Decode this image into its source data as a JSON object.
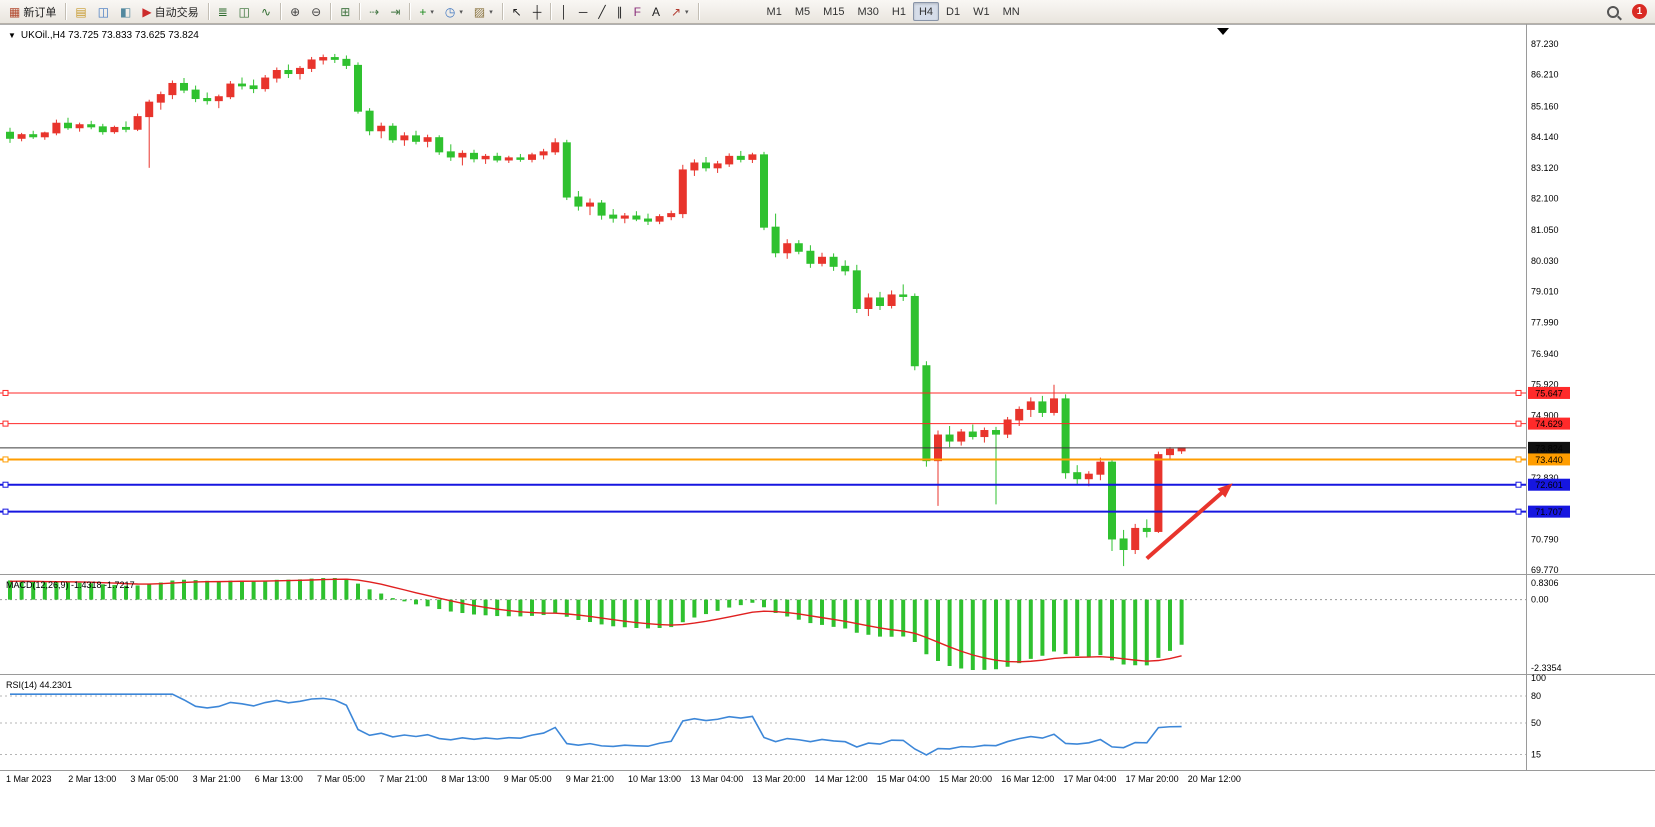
{
  "toolbar": {
    "notification_count": "1",
    "active_timeframe": "H4",
    "groups": [
      [
        {
          "name": "new-order-button",
          "glyph": "▦",
          "glyph_color": "#b24a2f",
          "label": "新订单"
        }
      ],
      [
        {
          "name": "market-watch-button",
          "glyph": "▤",
          "glyph_color": "#c79a2e"
        },
        {
          "name": "navigator-button",
          "glyph": "◫",
          "glyph_color": "#3f76c0"
        },
        {
          "name": "terminal-button",
          "glyph": "◧",
          "glyph_color": "#52889e"
        },
        {
          "name": "autotrading-button",
          "glyph": "▶",
          "glyph_color": "#cc2b2b",
          "label": "自动交易"
        }
      ],
      [
        {
          "name": "bar-chart-button",
          "glyph": "≣",
          "glyph_color": "#2e6b2e"
        },
        {
          "name": "candlestick-chart-button",
          "glyph": "◫",
          "glyph_color": "#2e6b2e"
        },
        {
          "name": "line-chart-button",
          "glyph": "∿",
          "glyph_color": "#2e6b2e"
        }
      ],
      [
        {
          "name": "zoom-in-button",
          "glyph": "⊕",
          "glyph_color": "#444444"
        },
        {
          "name": "zoom-out-button",
          "glyph": "⊖",
          "glyph_color": "#444444"
        }
      ],
      [
        {
          "name": "tile-windows-button",
          "glyph": "⊞",
          "glyph_color": "#447744"
        }
      ],
      [
        {
          "name": "auto-scroll-button",
          "glyph": "⇢",
          "glyph_color": "#447744"
        },
        {
          "name": "chart-shift-button",
          "glyph": "⇥",
          "glyph_color": "#447744"
        }
      ],
      [
        {
          "name": "indicators-button",
          "glyph": "+",
          "glyph_color": "#1d8a1d",
          "caret": true
        },
        {
          "name": "periods-button",
          "glyph": "◷",
          "glyph_color": "#3f76c0",
          "caret": true
        },
        {
          "name": "templates-button",
          "glyph": "▨",
          "glyph_color": "#8a7440",
          "caret": true
        }
      ],
      [
        {
          "name": "cursor-button",
          "glyph": "↖",
          "glyph_color": "#222222"
        },
        {
          "name": "crosshair-button",
          "glyph": "┼",
          "glyph_color": "#222222"
        }
      ],
      [
        {
          "name": "vertical-line-button",
          "glyph": "│",
          "glyph_color": "#222222"
        },
        {
          "name": "horizontal-line-button",
          "glyph": "─",
          "glyph_color": "#222222"
        },
        {
          "name": "trendline-button",
          "glyph": "╱",
          "glyph_color": "#222222"
        },
        {
          "name": "channel-button",
          "glyph": "∥",
          "glyph_color": "#222222"
        },
        {
          "name": "fibonacci-button",
          "glyph": "F",
          "glyph_color": "#8a2f7a"
        },
        {
          "name": "text-button",
          "glyph": "A",
          "glyph_color": "#222222"
        },
        {
          "name": "arrows-button",
          "glyph": "↗",
          "glyph_color": "#b23a2f",
          "caret": true
        }
      ],
      [
        {
          "name": "timeframe-m1-button",
          "label": "M1",
          "cls": "tf"
        },
        {
          "name": "timeframe-m5-button",
          "label": "M5",
          "cls": "tf"
        },
        {
          "name": "timeframe-m15-button",
          "label": "M15",
          "cls": "tf"
        },
        {
          "name": "timeframe-m30-button",
          "label": "M30",
          "cls": "tf"
        },
        {
          "name": "timeframe-h1-button",
          "label": "H1",
          "cls": "tf"
        },
        {
          "name": "timeframe-h4-button",
          "label": "H4",
          "cls": "tf",
          "active": true
        },
        {
          "name": "timeframe-d1-button",
          "label": "D1",
          "cls": "tf"
        },
        {
          "name": "timeframe-w1-button",
          "label": "W1",
          "cls": "tf"
        },
        {
          "name": "timeframe-mn-button",
          "label": "MN",
          "cls": "tf"
        }
      ]
    ]
  },
  "chart": {
    "symbol": "UKOil",
    "period": "H4",
    "symbol_line": "UKOil.,H4  73.725 73.833 73.625 73.824",
    "ohlc_display": {
      "open": "73.725",
      "high": "73.833",
      "low": "73.625",
      "close": "73.824"
    }
  },
  "indicators": {
    "macd_label": "MACD(12,26,9) -1.4318 -1.7217",
    "rsi_label": "RSI(14) 44.2301"
  },
  "chart_data": {
    "type": "candlestick",
    "symbol": "UKOil",
    "timeframe": "H4",
    "colors": {
      "bull": "#e8342c",
      "bear": "#2fc12f",
      "macd_hist": "#2fc12f",
      "macd_signal": "#e02020",
      "rsi_line": "#3d87d8"
    },
    "price_range": {
      "min": 69.77,
      "max": 87.23
    },
    "price_ticks": [
      [
        "87.230",
        87.23
      ],
      [
        "86.210",
        86.21
      ],
      [
        "85.160",
        85.16
      ],
      [
        "84.140",
        84.14
      ],
      [
        "83.120",
        83.12
      ],
      [
        "82.100",
        82.1
      ],
      [
        "81.050",
        81.05
      ],
      [
        "80.030",
        80.03
      ],
      [
        "79.010",
        79.01
      ],
      [
        "77.990",
        77.99
      ],
      [
        "76.940",
        76.94
      ],
      [
        "75.920",
        75.92
      ],
      [
        "74.900",
        74.9
      ],
      [
        "72.830",
        72.83
      ],
      [
        "70.790",
        70.79
      ],
      [
        "69.770",
        69.77
      ]
    ],
    "hlines": [
      {
        "name": "resistance-line-1",
        "price": 75.647,
        "label": "75.647",
        "color": "#ff2a2a",
        "width": 1,
        "tag_bg": "#ff2a2a",
        "tag_fg": "#ffffff",
        "anchors": true
      },
      {
        "name": "resistance-line-2",
        "price": 74.629,
        "label": "74.629",
        "color": "#ff2a2a",
        "width": 1,
        "tag_bg": "#ff2a2a",
        "tag_fg": "#ffffff",
        "anchors": true
      },
      {
        "name": "current-price-line",
        "price": 73.824,
        "label": "73.824",
        "color": "#3c3c3c",
        "width": 1,
        "tag_bg": "#101010",
        "tag_fg": "#ffffff",
        "anchors": false
      },
      {
        "name": "support-line-orange",
        "price": 73.44,
        "label": "73.440",
        "color": "#ff9d00",
        "width": 2,
        "tag_bg": "#ff9d00",
        "tag_fg": "#000000",
        "anchors": true
      },
      {
        "name": "support-line-blue-1",
        "price": 72.601,
        "label": "72.601",
        "color": "#1616e0",
        "width": 2,
        "tag_bg": "#1616e0",
        "tag_fg": "#ffffff",
        "anchors": true
      },
      {
        "name": "support-line-blue-2",
        "price": 71.707,
        "label": "71.707",
        "color": "#1616e0",
        "width": 2,
        "tag_bg": "#1616e0",
        "tag_fg": "#ffffff",
        "anchors": true
      }
    ],
    "arrow": {
      "x1_index": 98.0,
      "y1_price": 70.15,
      "x2_index": 105.4,
      "y2_price": 72.65,
      "color": "#e8342c"
    },
    "time_labels": [
      "1 Mar 2023",
      "2 Mar 13:00",
      "3 Mar 05:00",
      "3 Mar 21:00",
      "6 Mar 13:00",
      "7 Mar 05:00",
      "7 Mar 21:00",
      "8 Mar 13:00",
      "9 Mar 05:00",
      "9 Mar 21:00",
      "10 Mar 13:00",
      "13 Mar 04:00",
      "13 Mar 20:00",
      "14 Mar 12:00",
      "15 Mar 04:00",
      "15 Mar 20:00",
      "16 Mar 12:00",
      "17 Mar 04:00",
      "17 Mar 20:00",
      "20 Mar 12:00"
    ],
    "macd": {
      "params": "12,26,9",
      "main_value": -1.4318,
      "signal_value": -1.7217,
      "axis_labels": [
        "0.8306",
        "0.00",
        "-2.3354"
      ]
    },
    "rsi": {
      "params": "14",
      "value": 44.2301,
      "levels": [
        80,
        50,
        15
      ],
      "axis_labels": [
        [
          "100",
          100
        ],
        [
          "80",
          80
        ],
        [
          "50",
          50
        ],
        [
          "15",
          15
        ]
      ]
    },
    "ohlc": [
      [
        84.3,
        84.45,
        83.95,
        84.1
      ],
      [
        84.1,
        84.28,
        84.0,
        84.22
      ],
      [
        84.22,
        84.35,
        84.08,
        84.15
      ],
      [
        84.15,
        84.32,
        84.05,
        84.28
      ],
      [
        84.28,
        84.72,
        84.2,
        84.6
      ],
      [
        84.6,
        84.78,
        84.38,
        84.45
      ],
      [
        84.45,
        84.62,
        84.32,
        84.55
      ],
      [
        84.55,
        84.68,
        84.4,
        84.48
      ],
      [
        84.48,
        84.58,
        84.22,
        84.32
      ],
      [
        84.32,
        84.52,
        84.25,
        84.46
      ],
      [
        84.46,
        84.66,
        84.3,
        84.4
      ],
      [
        84.4,
        84.92,
        84.34,
        84.82
      ],
      [
        84.82,
        85.38,
        83.12,
        85.3
      ],
      [
        85.3,
        85.65,
        85.05,
        85.55
      ],
      [
        85.55,
        86.02,
        85.4,
        85.92
      ],
      [
        85.92,
        86.1,
        85.6,
        85.7
      ],
      [
        85.7,
        85.85,
        85.3,
        85.42
      ],
      [
        85.42,
        85.62,
        85.22,
        85.35
      ],
      [
        85.35,
        85.55,
        85.1,
        85.48
      ],
      [
        85.48,
        86.0,
        85.4,
        85.9
      ],
      [
        85.9,
        86.12,
        85.72,
        85.84
      ],
      [
        85.84,
        86.05,
        85.6,
        85.75
      ],
      [
        85.75,
        86.2,
        85.65,
        86.1
      ],
      [
        86.1,
        86.45,
        85.95,
        86.35
      ],
      [
        86.35,
        86.55,
        86.1,
        86.25
      ],
      [
        86.25,
        86.5,
        86.05,
        86.42
      ],
      [
        86.42,
        86.8,
        86.3,
        86.7
      ],
      [
        86.7,
        86.88,
        86.55,
        86.78
      ],
      [
        86.78,
        86.9,
        86.6,
        86.72
      ],
      [
        86.72,
        86.85,
        86.4,
        86.52
      ],
      [
        86.52,
        86.62,
        84.92,
        85.0
      ],
      [
        85.0,
        85.1,
        84.2,
        84.35
      ],
      [
        84.35,
        84.62,
        84.1,
        84.5
      ],
      [
        84.5,
        84.6,
        83.95,
        84.05
      ],
      [
        84.05,
        84.3,
        83.85,
        84.18
      ],
      [
        84.18,
        84.35,
        83.9,
        84.0
      ],
      [
        84.0,
        84.22,
        83.8,
        84.12
      ],
      [
        84.12,
        84.2,
        83.55,
        83.65
      ],
      [
        83.65,
        83.9,
        83.35,
        83.48
      ],
      [
        83.48,
        83.7,
        83.2,
        83.6
      ],
      [
        83.6,
        83.72,
        83.3,
        83.42
      ],
      [
        83.42,
        83.58,
        83.25,
        83.5
      ],
      [
        83.5,
        83.62,
        83.3,
        83.38
      ],
      [
        83.38,
        83.52,
        83.28,
        83.45
      ],
      [
        83.45,
        83.58,
        83.32,
        83.4
      ],
      [
        83.4,
        83.62,
        83.3,
        83.55
      ],
      [
        83.55,
        83.75,
        83.4,
        83.65
      ],
      [
        83.65,
        84.1,
        83.55,
        83.95
      ],
      [
        83.95,
        84.05,
        82.05,
        82.15
      ],
      [
        82.15,
        82.35,
        81.7,
        81.85
      ],
      [
        81.85,
        82.1,
        81.55,
        81.95
      ],
      [
        81.95,
        82.05,
        81.4,
        81.55
      ],
      [
        81.55,
        81.75,
        81.3,
        81.45
      ],
      [
        81.45,
        81.62,
        81.28,
        81.52
      ],
      [
        81.52,
        81.68,
        81.35,
        81.42
      ],
      [
        81.42,
        81.6,
        81.22,
        81.35
      ],
      [
        81.35,
        81.58,
        81.25,
        81.5
      ],
      [
        81.5,
        81.7,
        81.38,
        81.6
      ],
      [
        81.6,
        83.22,
        81.45,
        83.05
      ],
      [
        83.05,
        83.4,
        82.85,
        83.28
      ],
      [
        83.28,
        83.48,
        83.0,
        83.12
      ],
      [
        83.12,
        83.35,
        82.95,
        83.25
      ],
      [
        83.25,
        83.6,
        83.15,
        83.5
      ],
      [
        83.5,
        83.68,
        83.3,
        83.4
      ],
      [
        83.4,
        83.62,
        83.28,
        83.55
      ],
      [
        83.55,
        83.65,
        81.05,
        81.15
      ],
      [
        81.15,
        81.6,
        80.15,
        80.3
      ],
      [
        80.3,
        80.75,
        80.1,
        80.6
      ],
      [
        80.6,
        80.72,
        80.25,
        80.35
      ],
      [
        80.35,
        80.55,
        79.8,
        79.95
      ],
      [
        79.95,
        80.3,
        79.85,
        80.15
      ],
      [
        80.15,
        80.28,
        79.7,
        79.85
      ],
      [
        79.85,
        80.05,
        79.55,
        79.7
      ],
      [
        79.7,
        79.9,
        78.3,
        78.45
      ],
      [
        78.45,
        78.95,
        78.2,
        78.8
      ],
      [
        78.8,
        79.0,
        78.4,
        78.55
      ],
      [
        78.55,
        79.05,
        78.45,
        78.9
      ],
      [
        78.9,
        79.25,
        78.7,
        78.85
      ],
      [
        78.85,
        78.95,
        76.4,
        76.55
      ],
      [
        76.55,
        76.7,
        73.2,
        73.4
      ],
      [
        73.4,
        74.4,
        71.9,
        74.25
      ],
      [
        74.25,
        74.55,
        73.85,
        74.05
      ],
      [
        74.05,
        74.45,
        73.9,
        74.35
      ],
      [
        74.35,
        74.6,
        74.1,
        74.2
      ],
      [
        74.2,
        74.5,
        74.0,
        74.4
      ],
      [
        74.4,
        74.52,
        71.95,
        74.28
      ],
      [
        74.28,
        74.85,
        74.15,
        74.75
      ],
      [
        74.75,
        75.2,
        74.55,
        75.1
      ],
      [
        75.1,
        75.5,
        74.85,
        75.35
      ],
      [
        75.35,
        75.55,
        74.85,
        75.0
      ],
      [
        75.0,
        75.92,
        74.9,
        75.45
      ],
      [
        75.45,
        75.6,
        72.8,
        73.0
      ],
      [
        73.0,
        73.25,
        72.6,
        72.8
      ],
      [
        72.8,
        73.05,
        72.55,
        72.95
      ],
      [
        72.95,
        73.5,
        72.75,
        73.35
      ],
      [
        73.35,
        73.45,
        70.4,
        70.8
      ],
      [
        70.8,
        71.1,
        69.9,
        70.45
      ],
      [
        70.45,
        71.3,
        70.3,
        71.15
      ],
      [
        71.15,
        71.45,
        70.85,
        71.05
      ],
      [
        71.05,
        73.7,
        71.0,
        73.6
      ],
      [
        73.6,
        73.85,
        73.45,
        73.78
      ],
      [
        73.725,
        73.833,
        73.625,
        73.824
      ]
    ]
  }
}
